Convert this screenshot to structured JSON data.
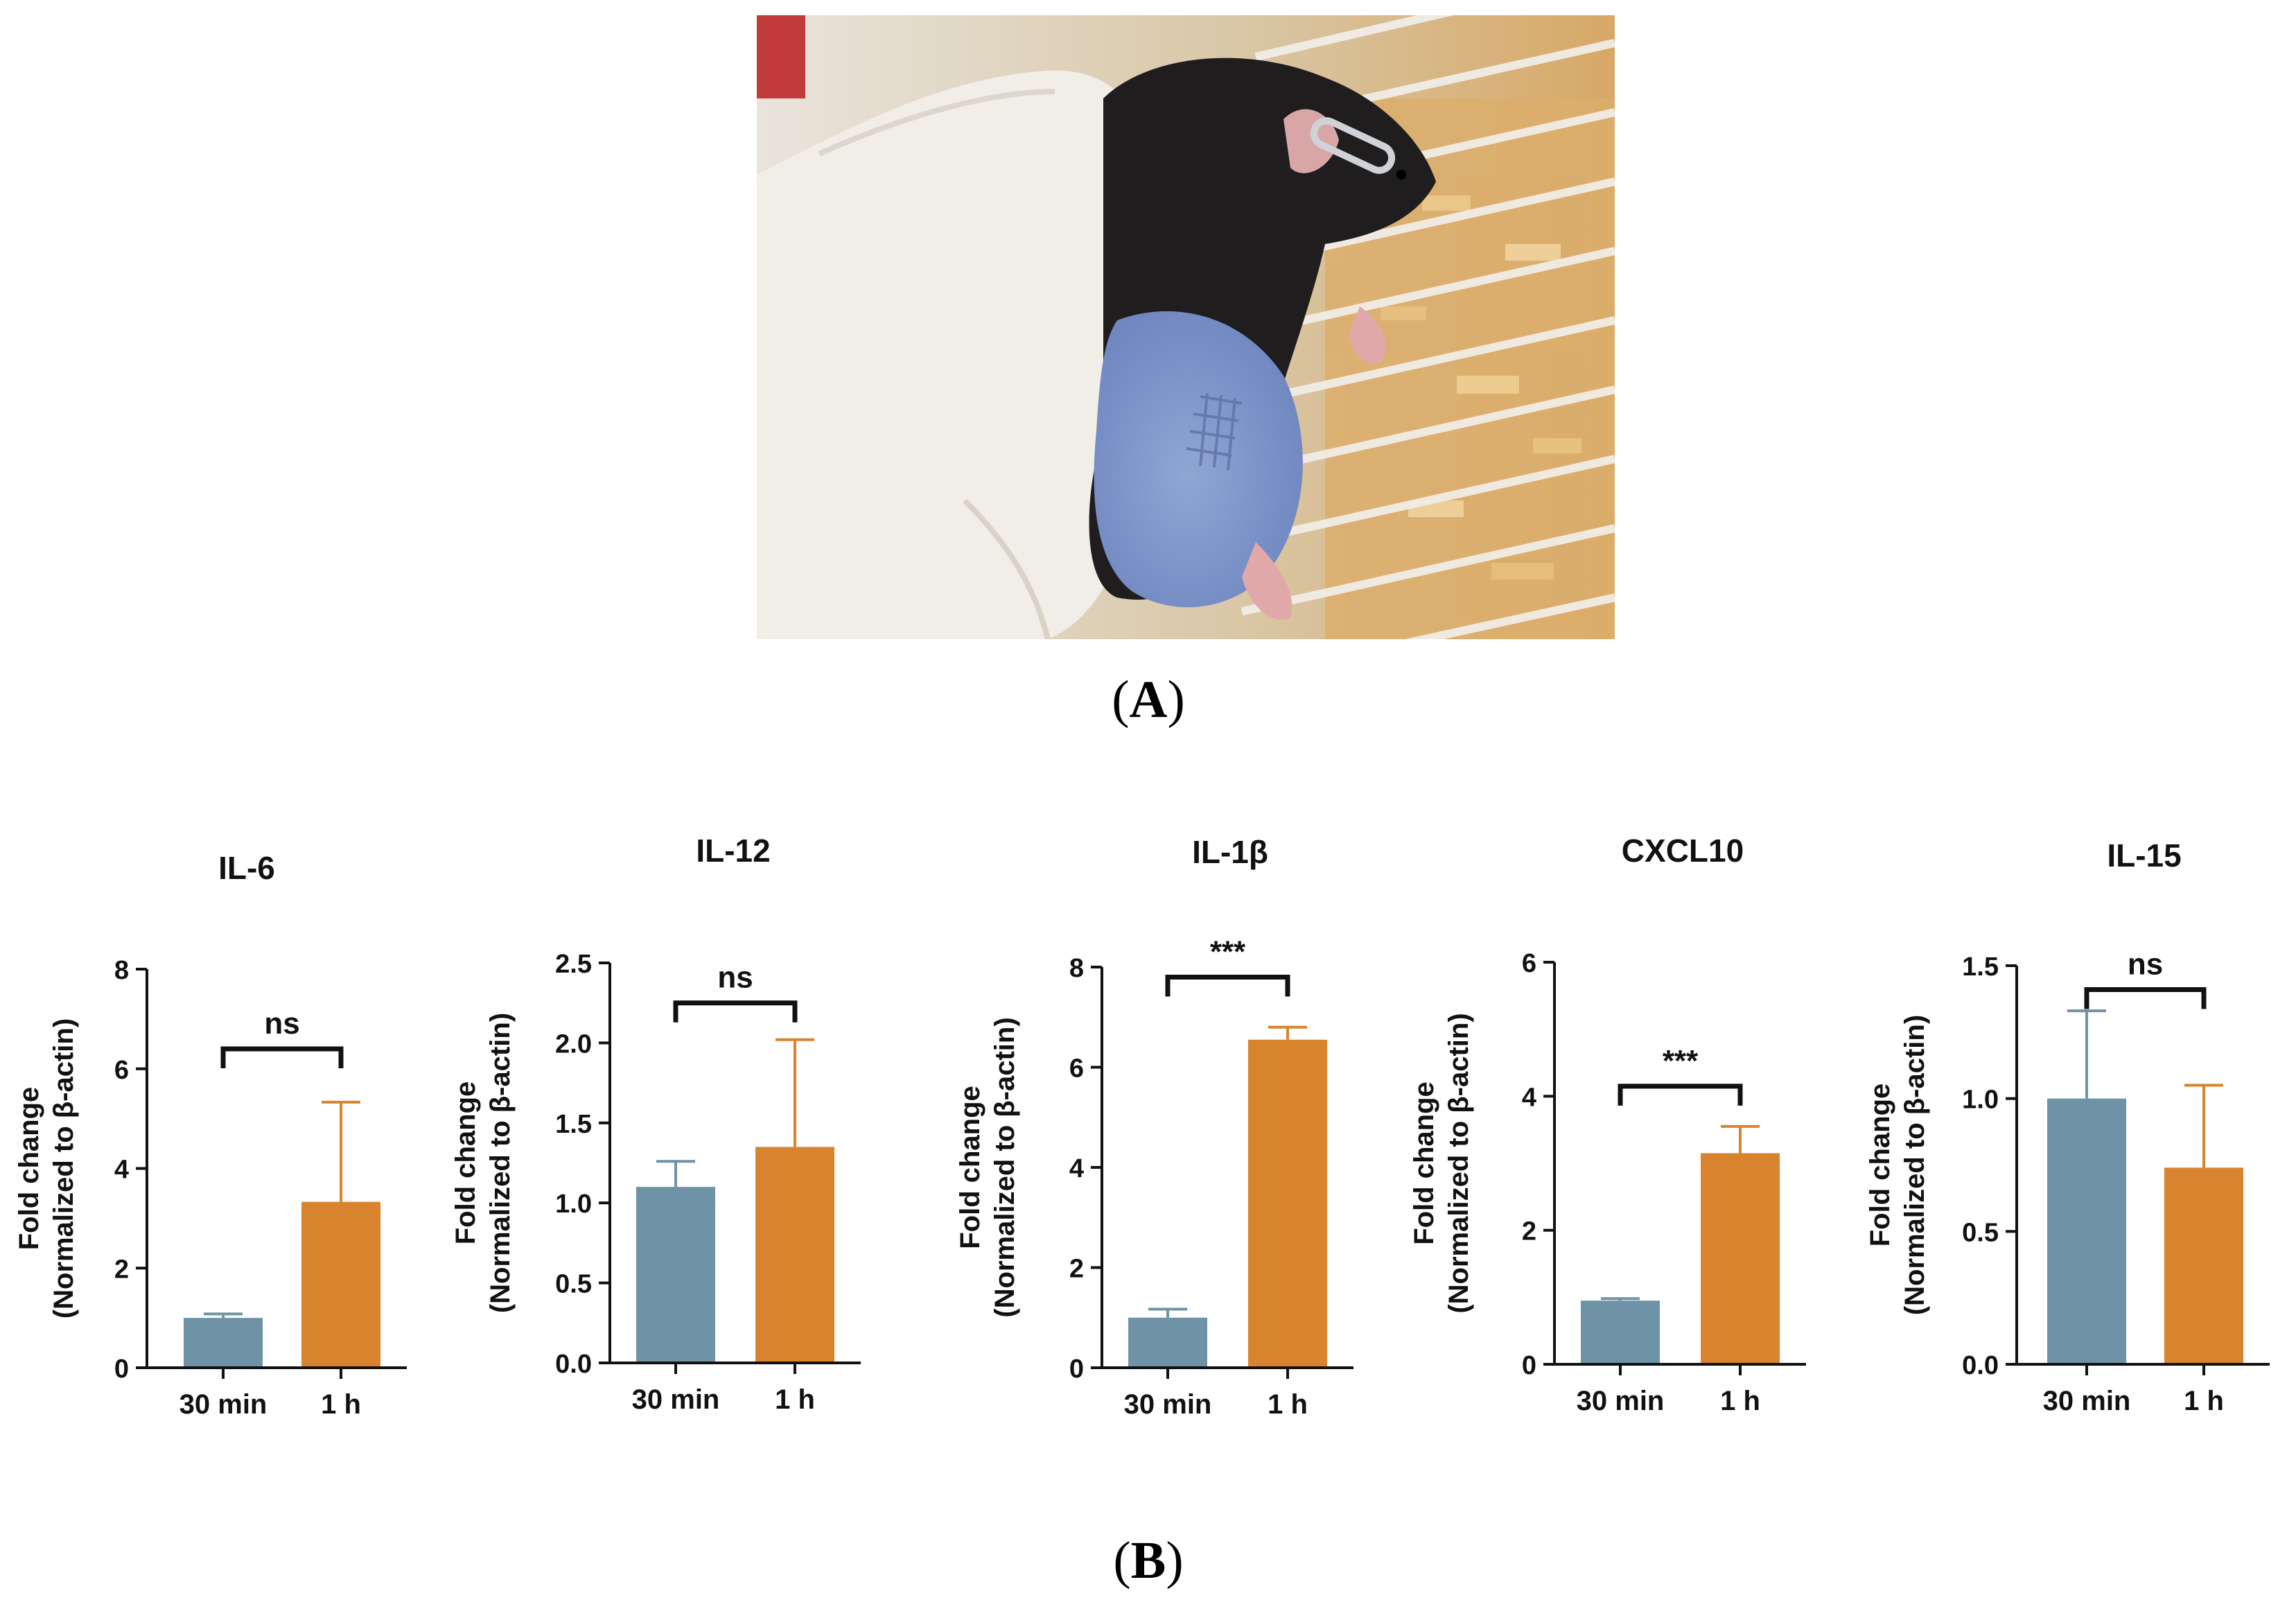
{
  "panels": {
    "a_label": "A",
    "b_label": "B",
    "paren_open": "(",
    "paren_close": ")"
  },
  "photo": {
    "kind": "photograph"
  },
  "colors": {
    "bar_30min": "#6E93A6",
    "bar_1h": "#D8842E",
    "axis": "#111111"
  },
  "chart_data": [
    {
      "type": "bar",
      "title": "IL-6",
      "ylabel_line1": "Fold change",
      "ylabel_line2": "(Normalized to β-actin)",
      "categories": [
        "30 min",
        "1 h"
      ],
      "values": [
        1.0,
        3.33
      ],
      "errors": [
        0.08,
        2.0
      ],
      "ylim": [
        0,
        8
      ],
      "yticks": [
        "0",
        "2",
        "4",
        "6",
        "8"
      ],
      "ytick_values": [
        0,
        2,
        4,
        6,
        8
      ],
      "significance": "ns",
      "sig_level": 6.4
    },
    {
      "type": "bar",
      "title": "IL-12",
      "ylabel_line1": "Fold change",
      "ylabel_line2": "(Normalized to β-actin)",
      "categories": [
        "30 min",
        "1 h"
      ],
      "values": [
        1.1,
        1.35
      ],
      "errors": [
        0.16,
        0.67
      ],
      "ylim": [
        0,
        2.5
      ],
      "yticks": [
        "0.0",
        "0.5",
        "1.0",
        "1.5",
        "2.0",
        "2.5"
      ],
      "ytick_values": [
        0,
        0.5,
        1.0,
        1.5,
        2.0,
        2.5
      ],
      "significance": "ns",
      "sig_level": 2.25
    },
    {
      "type": "bar",
      "title": "IL-1β",
      "ylabel_line1": "Fold change",
      "ylabel_line2": "(Normalized to β-actin)",
      "categories": [
        "30 min",
        "1 h"
      ],
      "values": [
        1.0,
        6.55
      ],
      "errors": [
        0.17,
        0.25
      ],
      "ylim": [
        0,
        8
      ],
      "yticks": [
        "0",
        "2",
        "4",
        "6",
        "8"
      ],
      "ytick_values": [
        0,
        2,
        4,
        6,
        8
      ],
      "significance": "***",
      "sig_level": 7.8
    },
    {
      "type": "bar",
      "title": "CXCL10",
      "ylabel_line1": "Fold change",
      "ylabel_line2": "(Normalized to β-actin)",
      "categories": [
        "30 min",
        "1 h"
      ],
      "values": [
        0.95,
        3.15
      ],
      "errors": [
        0.03,
        0.4
      ],
      "ylim": [
        0,
        6
      ],
      "yticks": [
        "0",
        "2",
        "4",
        "6"
      ],
      "ytick_values": [
        0,
        2,
        4,
        6
      ],
      "significance": "***",
      "sig_level": 4.15
    },
    {
      "type": "bar",
      "title": "IL-15",
      "ylabel_line1": "Fold change",
      "ylabel_line2": "(Normalized to β-actin)",
      "categories": [
        "30 min",
        "1 h"
      ],
      "values": [
        1.0,
        0.74
      ],
      "errors": [
        0.33,
        0.31
      ],
      "ylim": [
        0,
        1.5
      ],
      "yticks": [
        "0.0",
        "0.5",
        "1.0",
        "1.5"
      ],
      "ytick_values": [
        0,
        0.5,
        1.0,
        1.5
      ],
      "significance": "ns",
      "sig_level": 1.41
    }
  ]
}
